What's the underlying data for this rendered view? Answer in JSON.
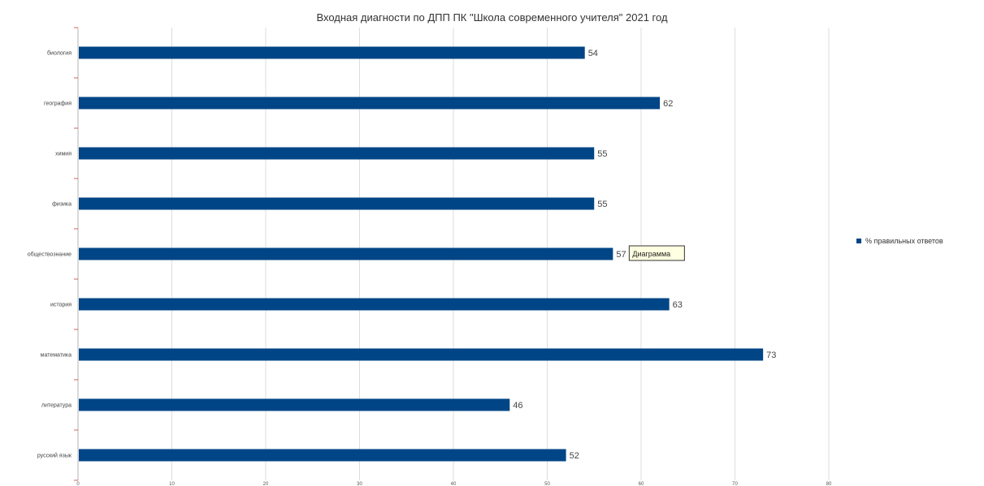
{
  "chart_data": {
    "type": "bar",
    "orientation": "horizontal",
    "title": "Входная диагности по ДПП ПК \"Школа современного учителя\" 2021 год",
    "categories": [
      "биология",
      "география",
      "химия",
      "физика",
      "обществознание",
      "история",
      "математика",
      "литература",
      "русский язык"
    ],
    "series": [
      {
        "name": "% правильных ответов",
        "values": [
          54,
          62,
          55,
          55,
          57,
          63,
          73,
          46,
          52
        ],
        "color": "#004586"
      }
    ],
    "xlim": [
      0,
      80
    ],
    "x_ticks": [
      0,
      10,
      20,
      30,
      40,
      50,
      60,
      70,
      80
    ],
    "grid": true,
    "legend_position": "right",
    "tooltip": "Диаграмма"
  }
}
